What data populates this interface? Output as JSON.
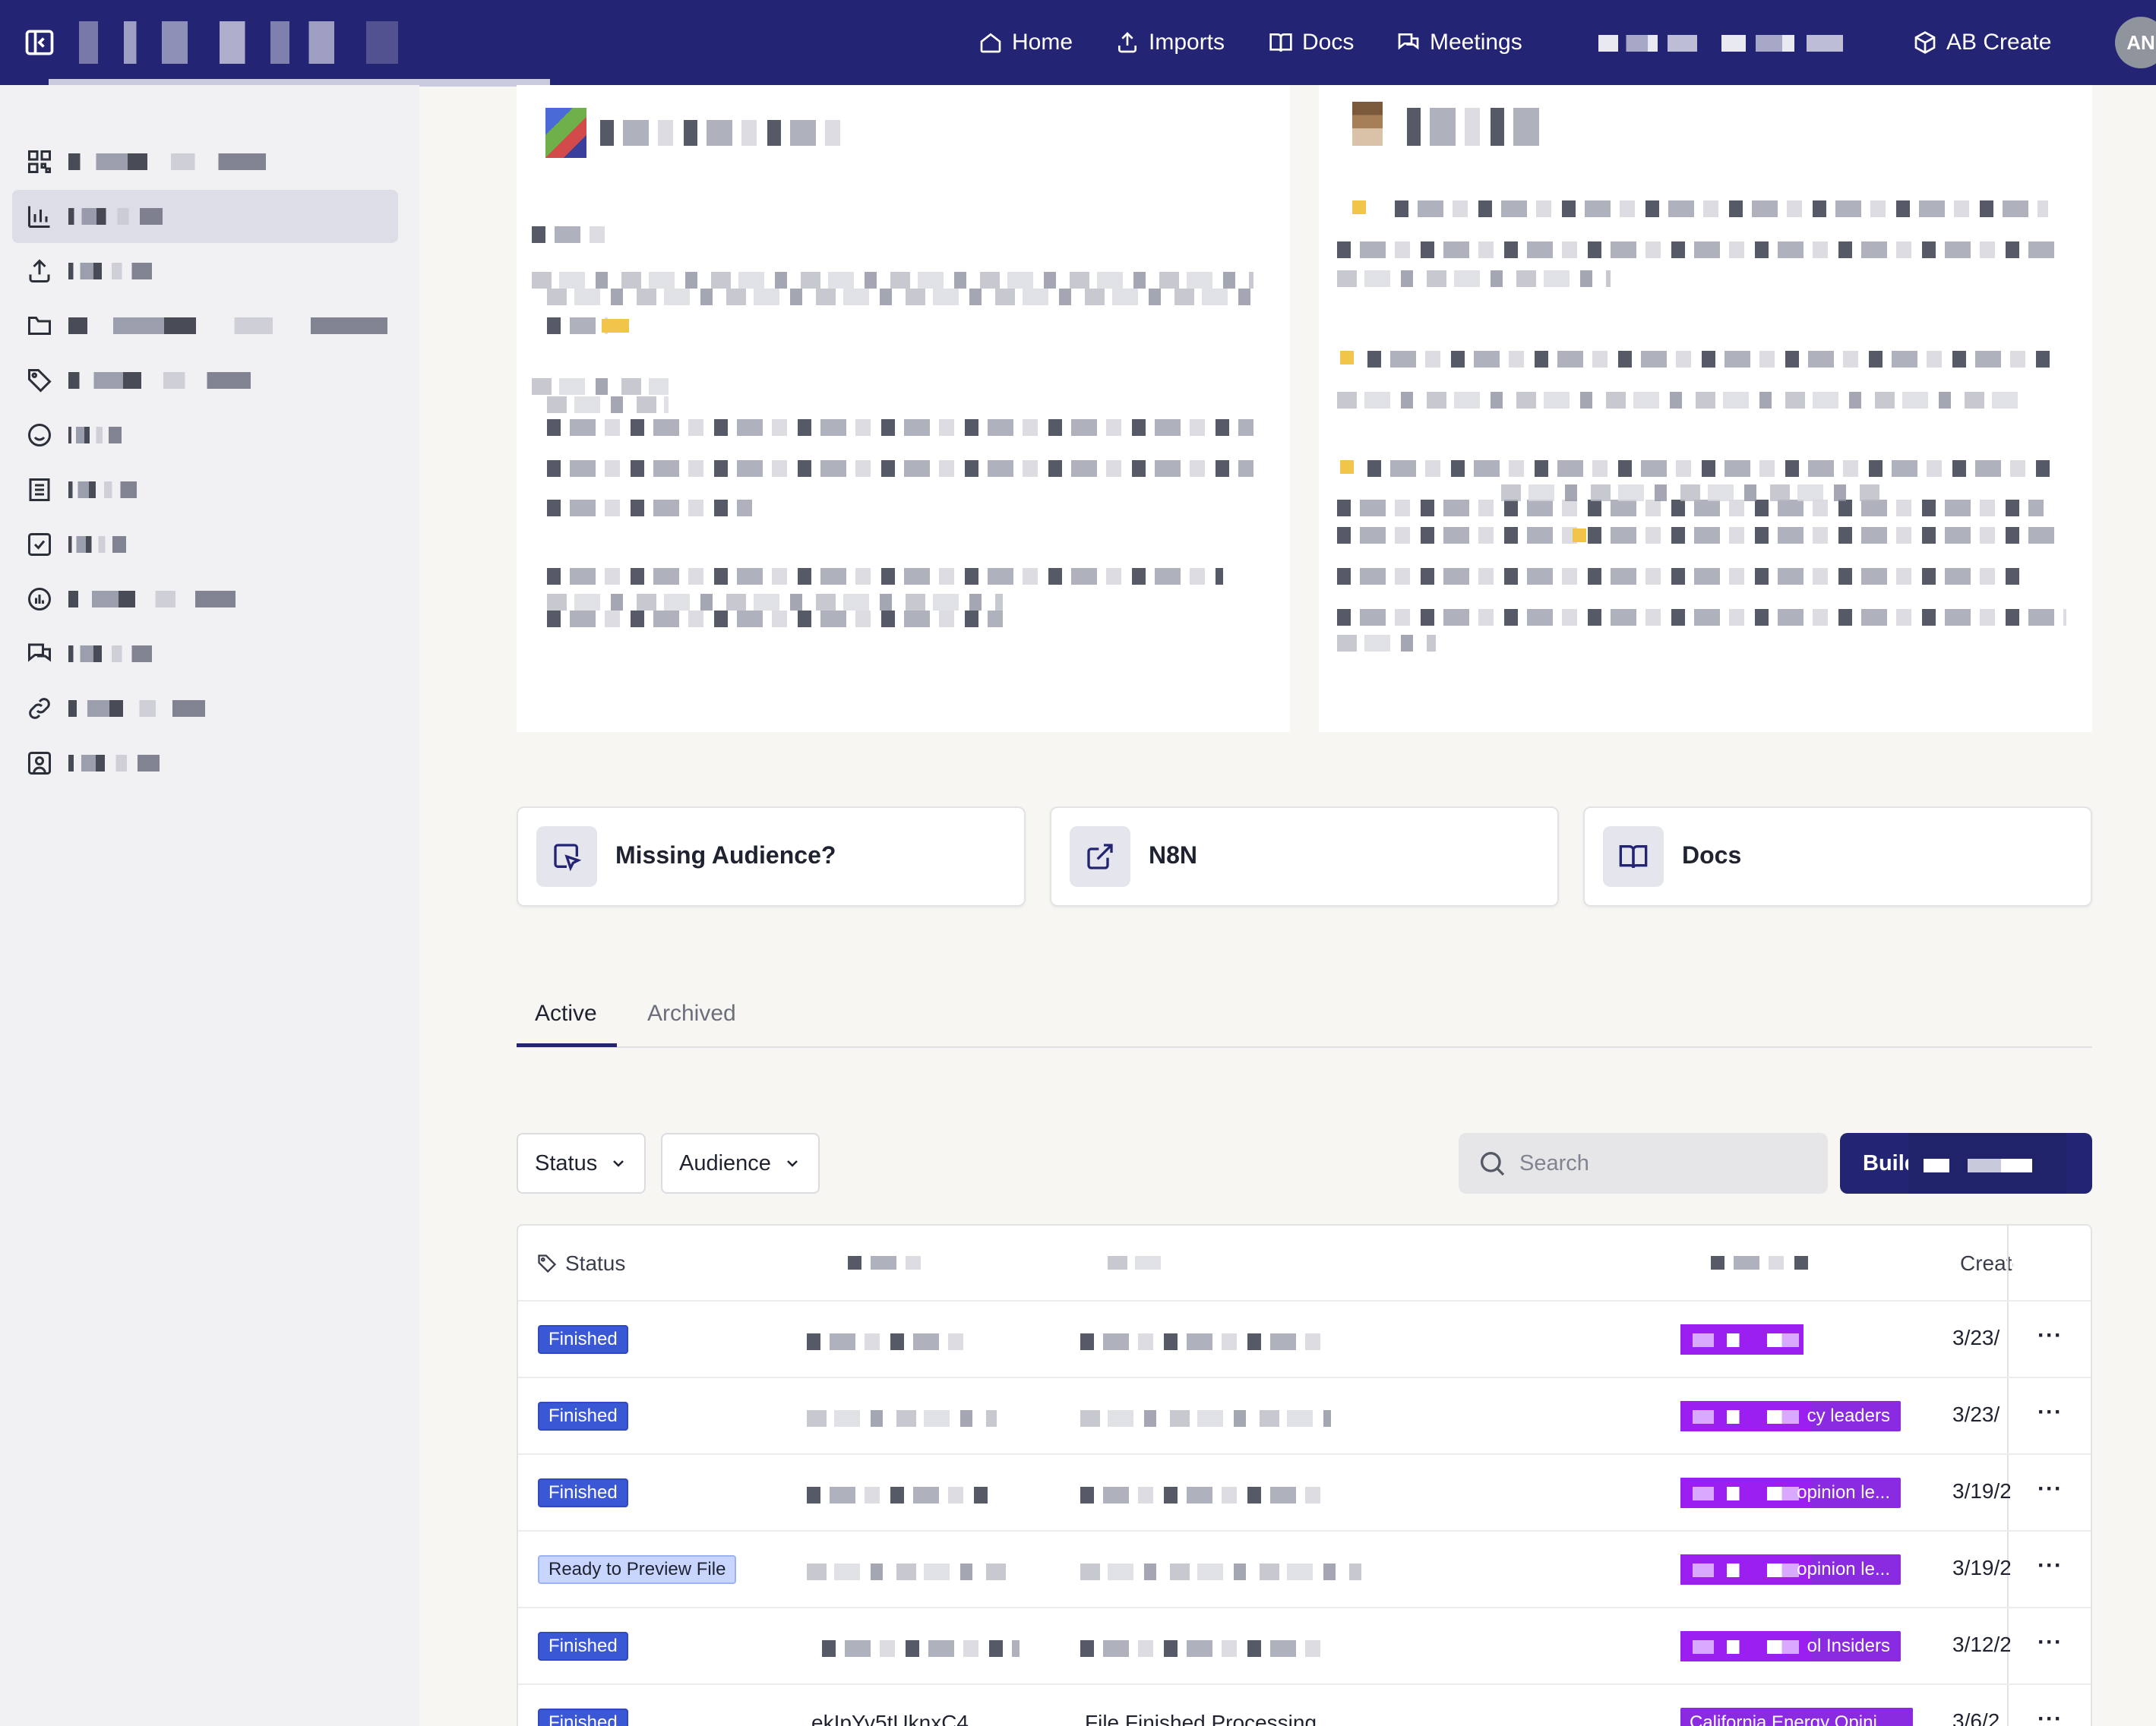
{
  "nav": {
    "home": "Home",
    "imports": "Imports",
    "docs": "Docs",
    "meetings": "Meetings",
    "create": "AB Create",
    "avatar_initials": "AN"
  },
  "sidebar": {
    "items": [
      {
        "icon": "qr-grid-icon",
        "letter": "T",
        "active": false
      },
      {
        "icon": "bar-chart-icon",
        "letter": "S",
        "active": true
      },
      {
        "icon": "upload-icon",
        "letter": "I",
        "active": false
      },
      {
        "icon": "folder-icon",
        "letter": "A",
        "active": false
      },
      {
        "icon": "tag-icon",
        "letter": "A",
        "active": false
      },
      {
        "icon": "smile-icon",
        "letter": "C",
        "active": false
      },
      {
        "icon": "table-icon",
        "letter": "F",
        "active": false
      },
      {
        "icon": "checkbox-icon",
        "letter": "T",
        "active": false
      },
      {
        "icon": "gauge-icon",
        "letter": "S",
        "active": false
      },
      {
        "icon": "chat-icon",
        "letter": "F",
        "active": false
      },
      {
        "icon": "link-icon",
        "letter": "U",
        "active": false
      },
      {
        "icon": "user-square-icon",
        "letter": "M",
        "active": false
      }
    ]
  },
  "quick_links": {
    "missing_audience": "Missing Audience?",
    "n8n": "N8N",
    "docs": "Docs"
  },
  "tabs": {
    "active": "Active",
    "archived": "Archived"
  },
  "filters": {
    "status": "Status",
    "audience": "Audience",
    "search_placeholder": "Search",
    "build_label": "Build"
  },
  "table": {
    "col_status": "Status",
    "col_created": "Created",
    "rows": [
      {
        "status": "Finished",
        "audience_suffix": "",
        "date": "3/23/"
      },
      {
        "status": "Finished",
        "audience_suffix": "cy leaders",
        "date": "3/23/"
      },
      {
        "status": "Finished",
        "audience_suffix": "opinion le...",
        "date": "3/19/2"
      },
      {
        "status": "Ready to Preview File",
        "audience_suffix": "opinion le...",
        "date": "3/19/2"
      },
      {
        "status": "Finished",
        "audience_suffix": "ol Insiders",
        "date": "3/12/2"
      },
      {
        "status": "Finished",
        "id": "ekIpYv5tUknxC4",
        "note": "File Finished Processing",
        "audience_full": "California Energy Opini...",
        "date": "3/6/2"
      }
    ]
  },
  "colors": {
    "topbar": "#232474",
    "accent": "#232474",
    "finished_badge": "#3a57d6",
    "ready_badge": "#c8d6ff",
    "audience_tag": "#8a2be2",
    "bullet": "#f0c54a"
  }
}
